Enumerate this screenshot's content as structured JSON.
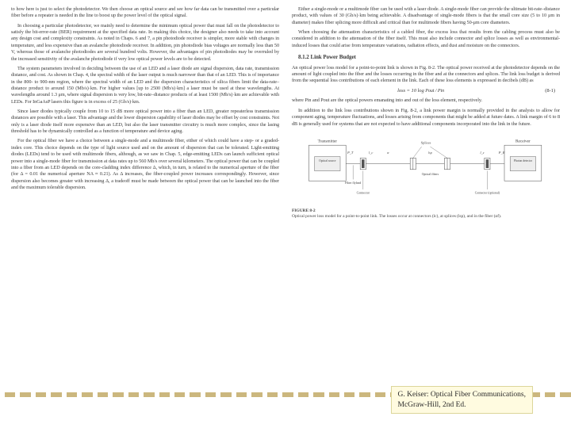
{
  "citation": {
    "line1": "G. Keiser: Optical Fiber Communications,",
    "line2": "McGraw-Hill, 2nd Ed."
  },
  "style": {
    "dash_color": "#cbb77e",
    "dash_count": 37,
    "citation_bg": "#fffbe0"
  },
  "left_column": {
    "p1": "to how here is just to select the photodetector. We then choose an optical source and see how far data can be transmitted over a particular fiber before a repeater is needed in the line to boost up the power level of the optical signal.",
    "p2": "In choosing a particular photodetector, we mainly need to determine the minimum optical power that must fall on the photodetector to satisfy the bit-error-rate (BER) requirement at the specified data rate. In making this choice, the designer also needs to take into account any design cost and complexity constraints. As noted in Chaps. 6 and 7, a pin photodiode receiver is simpler, more stable with changes in temperature, and less expensive than an avalanche photodiode receiver. In addition, pin photodiode bias voltages are normally less than 50 V, whereas those of avalanche photodiodes are several hundred volts. However, the advantages of pin photodiodes may be overruled by the increased sensitivity of the avalanche photodiode if very low optical power levels are to be detected.",
    "p3": "The system parameters involved in deciding between the use of an LED and a laser diode are signal dispersion, data rate, transmission distance, and cost. As shown in Chap. 4, the spectral width of the laser output is much narrower than that of an LED. This is of importance in the 800- to 900-nm region, where the spectral width of an LED and the dispersion characteristics of silica fibers limit the data-rate–distance product to around 150 (Mb/s)·km. For higher values [up to 2500 (Mb/s)·km] a laser must be used at these wavelengths. At wavelengths around 1.3 μm, where signal dispersion is very low, bit-rate–distance products of at least 1500 (Mb/s)·km are achievable with LEDs. For InGaAsP lasers this figure is in excess of 25 (Gb/s)·km.",
    "p4": "Since laser diodes typically couple from 10 to 15 dB more optical power into a fiber than an LED, greater repeaterless transmission distances are possible with a laser. This advantage and the lower dispersion capability of laser diodes may be offset by cost constraints. Not only is a laser diode itself more expensive than an LED, but also the laser transmitter circuitry is much more complex, since the lasing threshold has to be dynamically controlled as a function of temperature and device aging.",
    "p5": "For the optical fiber we have a choice between a single-mode and a multimode fiber, either of which could have a step- or a graded-index core. This choice depends on the type of light source used and on the amount of dispersion that can be tolerated. Light-emitting diodes (LEDs) tend to be used with multimode fibers, although, as we saw in Chap. 5, edge-emitting LEDs can launch sufficient optical power into a single-mode fiber for transmission at data rates up to 560 Mb/s over several kilometers. The optical power that can be coupled into a fiber from an LED depends on the core-cladding index difference Δ, which, in turn, is related to the numerical aperture of the fiber (for Δ = 0.01 the numerical aperture NA ≈ 0.21). As Δ increases, the fiber-coupled power increases correspondingly. However, since dispersion also becomes greater with increasing Δ, a tradeoff must be made between the optical power that can be launched into the fiber and the maximum tolerable dispersion."
  },
  "right_column": {
    "p1": "Either a single-mode or a multimode fiber can be used with a laser diode. A single-mode fiber can provide the ultimate bit-rate–distance product, with values of 30 (Gb/s)·km being achievable. A disadvantage of single-mode fibers is that the small core size (5 to 10 μm in diameter) makes fiber splicing more difficult and critical than for multimode fibers having 50-μm core diameters.",
    "p2": "When choosing the attenuation characteristics of a cabled fiber, the excess loss that results from the cabling process must also be considered in addition to the attenuation of the fiber itself. This must also include connector and splice losses as well as environmental-induced losses that could arise from temperature variations, radiation effects, and dust and moisture on the connectors.",
    "section": "8.1.2  Link Power Budget",
    "p3": "An optical power loss model for a point-to-point link is shown in Fig. 8-2. The optical power received at the photodetector depends on the amount of light coupled into the fiber and the losses occurring in the fiber and at the connectors and splices. The link loss budget is derived from the sequential loss contributions of each element in the link. Each of these loss elements is expressed in decibels (dB) as",
    "eq_label": "loss = 10 log",
    "eq_frac": "Pout / Pin",
    "eq_num": "(8-1)",
    "p4": "where Pin and Pout are the optical powers emanating into and out of the loss element, respectively.",
    "p5": "In addition to the link loss contributions shown in Fig. 8-2, a link power margin is normally provided in the analysis to allow for component aging, temperature fluctuations, and losses arising from components that might be added at future dates. A link margin of 6 to 8 dB is generally used for systems that are not expected to have additional components incorporated into the link in the future.",
    "figure": {
      "labels": {
        "transmitter": "Transmitter",
        "receiver": "Receiver",
        "optical_source": "Optical source",
        "photon_detector": "Photon detector",
        "splices": "Splices",
        "connector": "Connector",
        "optical_fibers": "Optical fibers",
        "fiber_flylead": "Fiber flylead",
        "connector_alt": "Connector (optional)"
      },
      "caption_title": "FIGURE 8-2",
      "caption_text": "Optical power loss model for a point-to-point link. The losses occur at connectors (lc), at splices (lsp), and in the fiber (αf).",
      "colors": {
        "line": "#555",
        "box_fill": "#eee"
      }
    }
  }
}
